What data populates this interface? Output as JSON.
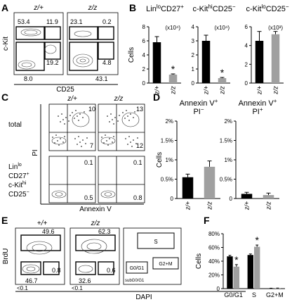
{
  "panel_labels": {
    "A": "A",
    "B": "B",
    "C": "C",
    "D": "D",
    "E": "E",
    "F": "F"
  },
  "genotypes": {
    "het": "z/+",
    "hom": "z/z",
    "wt": "+/+"
  },
  "panel_a": {
    "y_axis_label": "c-Kit",
    "x_axis_label": "CD25",
    "left_plot": {
      "q_top_left": "53.4",
      "q_top_right": "11.9",
      "q_right": "19.2",
      "q_bottom": "8.0"
    },
    "right_plot": {
      "q_top_left": "23.1",
      "q_top_right": "0.2",
      "q_right": "4.8",
      "q_bottom": "43.1"
    }
  },
  "panel_c": {
    "row_total": "total",
    "row_gated": [
      "Lin",
      "lo",
      "CD27",
      "+",
      "c-Kit",
      "hi",
      "CD25",
      "−"
    ],
    "y_axis_label": "PI",
    "x_axis_label": "Annexin V",
    "plots": {
      "total_het": {
        "q_upper_right": "10",
        "q_lower_right": "7"
      },
      "total_hom": {
        "q_upper_right": "13",
        "q_lower_right": "12"
      },
      "gated_het": {
        "q_upper_right": "0.1",
        "q_lower_right": "0.5"
      },
      "gated_hom": {
        "q_upper_right": "0.1",
        "q_lower_right": "0.8"
      }
    }
  },
  "panel_e": {
    "y_axis_label": "BrdU",
    "x_axis_label": "DAPI",
    "left_plot": {
      "s": "49.6",
      "g0g1": "46.7",
      "g2m": "0.8",
      "sub": "<0.1"
    },
    "right_plot": {
      "s": "62.3",
      "g0g1": "32.6",
      "g2m": "0.6",
      "sub": "<0.1"
    },
    "legend": {
      "s": "S",
      "g0g1": "G0/G1",
      "g2m": "G2+M",
      "sub": "subG0/G1"
    }
  },
  "colors": {
    "black_bar": "#000000",
    "gray_bar": "#a0a0a0"
  },
  "chart_data": [
    {
      "type": "bar",
      "panel": "B",
      "title": [
        "Lin",
        "lo",
        "CD27",
        "+"
      ],
      "multiplier": "(x10⁴)",
      "ylabel": "Cells",
      "categories": [
        "z/+",
        "z/z"
      ],
      "values": [
        5.8,
        1.2
      ],
      "errors": [
        0.8,
        0.1
      ],
      "ylim": [
        0,
        8
      ],
      "ticks": [
        0,
        2,
        4,
        6,
        8
      ],
      "significance": "*",
      "significant_index": 1
    },
    {
      "type": "bar",
      "panel": "B",
      "title": [
        "c-Kit",
        "hi",
        "CD25",
        "−"
      ],
      "multiplier": "(x10⁴)",
      "categories": [
        "z/+",
        "z/z"
      ],
      "values": [
        3.0,
        0.35
      ],
      "errors": [
        0.4,
        0.05
      ],
      "ylim": [
        0,
        4
      ],
      "ticks": [
        0,
        1,
        2,
        3,
        4
      ],
      "significance": "*",
      "significant_index": 1
    },
    {
      "type": "bar",
      "panel": "B",
      "title": [
        "c-Kit",
        "lo",
        "CD25",
        "−"
      ],
      "multiplier": "(x10³)",
      "categories": [
        "z/+",
        "z/z"
      ],
      "values": [
        4.5,
        5.2
      ],
      "errors": [
        1.0,
        0.3
      ],
      "ylim": [
        0,
        6
      ],
      "ticks": [
        0,
        2,
        4,
        6
      ]
    },
    {
      "type": "bar",
      "panel": "D",
      "title": [
        "Annexin V",
        "+",
        "PI",
        "−"
      ],
      "ylabel": "Cells",
      "categories": [
        "z/+",
        "z/z"
      ],
      "values": [
        0.55,
        0.82
      ],
      "errors": [
        0.08,
        0.15
      ],
      "ylim": [
        0,
        2
      ],
      "ticks": [
        0,
        0.5,
        1,
        1.5,
        2
      ],
      "tick_labels": [
        "0",
        "0.5%",
        "1%",
        "1.5%",
        "2%"
      ]
    },
    {
      "type": "bar",
      "panel": "D",
      "title": [
        "Annexin V",
        "+",
        "PI",
        "+"
      ],
      "categories": [
        "z/+",
        "z/z"
      ],
      "values": [
        0.12,
        0.09
      ],
      "errors": [
        0.04,
        0.05
      ],
      "ylim": [
        0,
        2
      ],
      "ticks": [
        0,
        0.5,
        1,
        1.5,
        2
      ],
      "tick_labels": [
        "0",
        "0.5%",
        "1%",
        "1.5%",
        "2%"
      ]
    },
    {
      "type": "bar",
      "panel": "F",
      "ylabel": "Cells",
      "categories": [
        "G0/G1",
        "S",
        "G2+M"
      ],
      "series": [
        {
          "values": [
            47,
            49,
            0.4
          ],
          "errors": [
            1.5,
            1.5,
            0.2
          ]
        },
        {
          "values": [
            32,
            61,
            0.6
          ],
          "errors": [
            3,
            2.5,
            0.2
          ]
        }
      ],
      "ylim": [
        0,
        80
      ],
      "ticks": [
        0,
        20,
        40,
        60,
        80
      ],
      "tick_labels": [
        "0",
        "20%",
        "40%",
        "60%",
        "80%"
      ],
      "significance": "*",
      "significant": [
        [
          0,
          1
        ],
        [
          1,
          1
        ]
      ]
    }
  ]
}
